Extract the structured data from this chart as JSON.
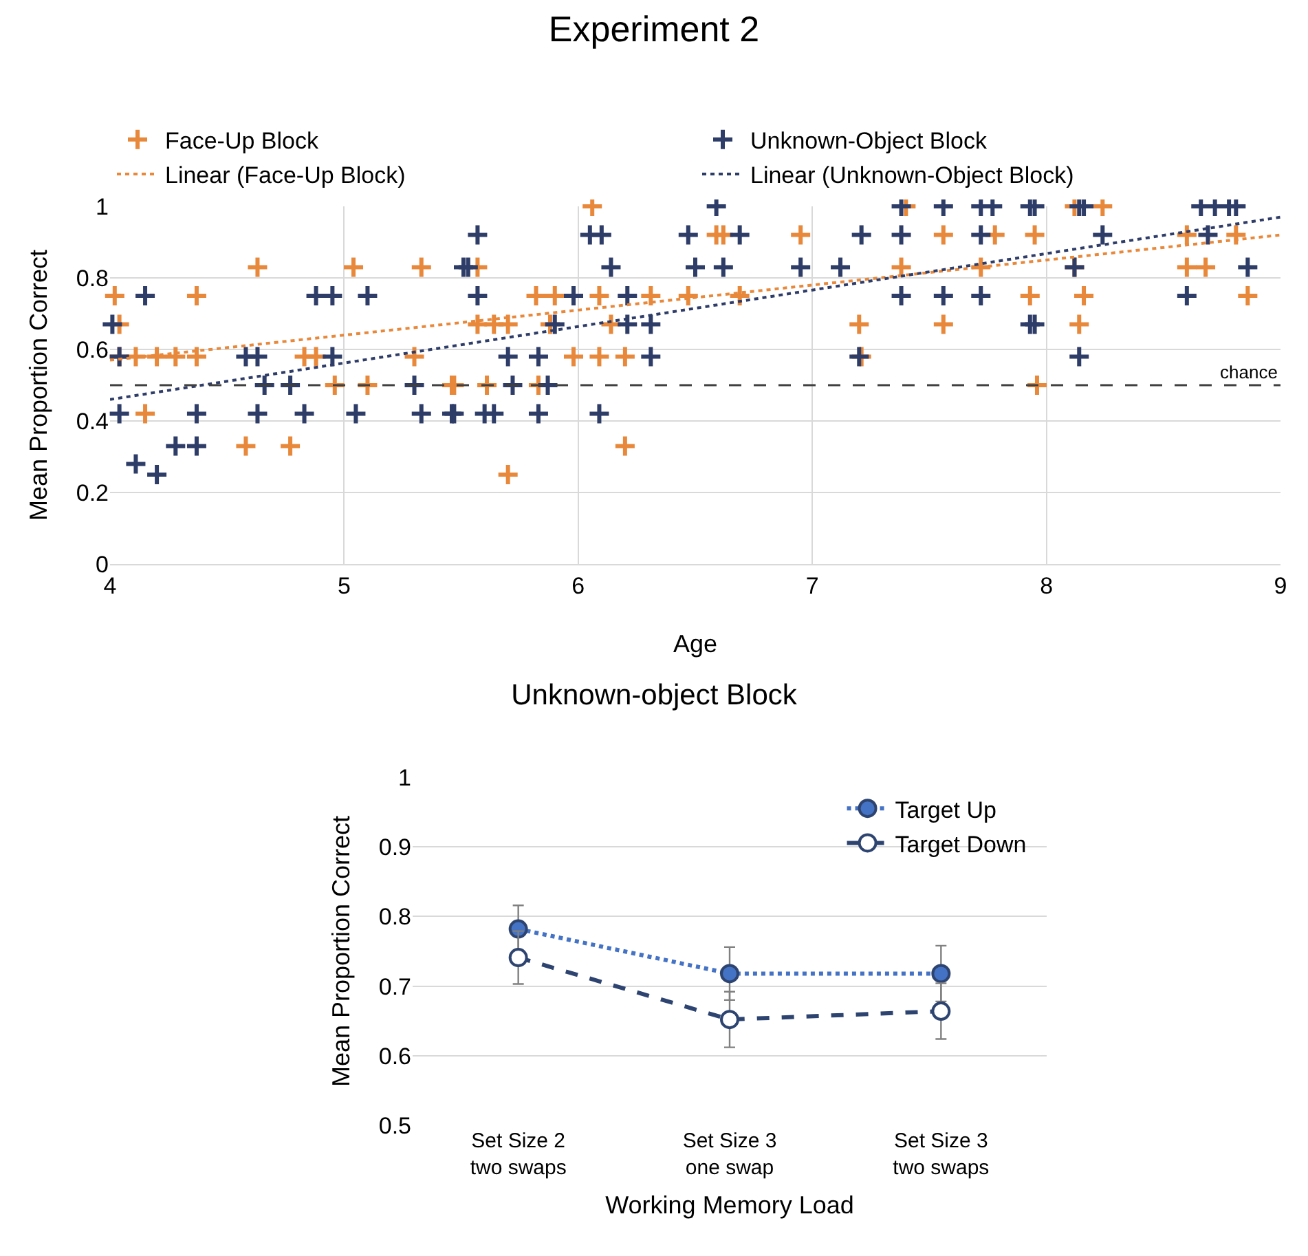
{
  "chart_data": [
    {
      "type": "scatter",
      "title": "Experiment 2",
      "xlabel": "Age",
      "ylabel": "Mean Proportion Correct",
      "xlim": [
        4,
        9
      ],
      "xticks": [
        4,
        5,
        6,
        7,
        8,
        9
      ],
      "ylim": [
        0,
        1
      ],
      "yticks": [
        0,
        0.2,
        0.4,
        0.6,
        0.8,
        1
      ],
      "grid": true,
      "legend": "top",
      "ref_lines": [
        {
          "axis": "y",
          "value": 0.5,
          "label": "chance",
          "color": "#404040",
          "line_style": "dashed"
        }
      ],
      "series": [
        {
          "name": "Face-Up Block",
          "color": "#e8883a",
          "marker": "cross",
          "x": [
            4.02,
            4.04,
            4.04,
            4.11,
            4.2,
            4.28,
            4.37,
            4.37,
            4.15,
            4.63,
            4.58,
            4.77,
            4.83,
            4.88,
            4.96,
            5.04,
            5.1,
            5.33,
            5.3,
            5.46,
            5.57,
            5.57,
            5.64,
            5.7,
            5.47,
            5.61,
            5.7,
            5.82,
            5.9,
            5.83,
            5.88,
            5.98,
            6.06,
            6.09,
            6.14,
            6.09,
            6.2,
            6.2,
            6.31,
            6.47,
            6.59,
            6.62,
            6.69,
            6.95,
            7.4,
            7.38,
            7.2,
            7.21,
            7.56,
            7.56,
            7.78,
            7.72,
            7.95,
            7.93,
            7.96,
            8.12,
            8.24,
            8.12,
            8.16,
            8.14,
            8.6,
            8.6,
            8.68,
            8.81,
            8.86
          ],
          "values": [
            0.75,
            0.67,
            0.58,
            0.58,
            0.58,
            0.58,
            0.58,
            0.75,
            0.42,
            0.83,
            0.33,
            0.33,
            0.58,
            0.58,
            0.5,
            0.83,
            0.5,
            0.83,
            0.58,
            0.5,
            0.83,
            0.67,
            0.67,
            0.67,
            0.5,
            0.5,
            0.25,
            0.75,
            0.75,
            0.5,
            0.67,
            0.58,
            1.0,
            0.75,
            0.67,
            0.58,
            0.58,
            0.33,
            0.75,
            0.75,
            0.92,
            0.92,
            0.75,
            0.92,
            1.0,
            0.83,
            0.67,
            0.58,
            0.92,
            0.67,
            0.92,
            0.83,
            0.92,
            0.75,
            0.5,
            1.0,
            1.0,
            0.83,
            0.75,
            0.67,
            0.92,
            0.83,
            0.83,
            0.92,
            0.75
          ]
        },
        {
          "name": "Unknown-Object Block",
          "color": "#2e3c68",
          "marker": "cross",
          "x": [
            4.01,
            4.04,
            4.04,
            4.15,
            4.11,
            4.2,
            4.28,
            4.37,
            4.37,
            4.58,
            4.63,
            4.63,
            4.66,
            4.77,
            4.83,
            4.88,
            4.95,
            4.95,
            5.05,
            5.1,
            5.3,
            5.33,
            5.46,
            5.51,
            5.57,
            5.53,
            5.57,
            5.7,
            5.72,
            5.47,
            5.6,
            5.64,
            5.83,
            5.83,
            5.87,
            5.9,
            5.98,
            6.05,
            6.1,
            6.14,
            6.09,
            6.21,
            6.21,
            6.31,
            6.31,
            6.47,
            6.5,
            6.59,
            6.69,
            6.62,
            6.95,
            7.12,
            7.21,
            7.2,
            7.38,
            7.38,
            7.38,
            7.56,
            7.56,
            7.72,
            7.77,
            7.72,
            7.72,
            7.93,
            7.95,
            7.93,
            7.95,
            8.14,
            8.16,
            8.24,
            8.12,
            8.14,
            8.66,
            8.72,
            8.78,
            8.81,
            8.69,
            8.86,
            8.6
          ],
          "values": [
            0.67,
            0.58,
            0.42,
            0.75,
            0.28,
            0.25,
            0.33,
            0.33,
            0.42,
            0.58,
            0.58,
            0.42,
            0.5,
            0.5,
            0.42,
            0.75,
            0.75,
            0.58,
            0.42,
            0.75,
            0.5,
            0.42,
            0.42,
            0.83,
            0.92,
            0.83,
            0.75,
            0.58,
            0.5,
            0.42,
            0.42,
            0.42,
            0.58,
            0.42,
            0.5,
            0.67,
            0.75,
            0.92,
            0.92,
            0.83,
            0.42,
            0.75,
            0.67,
            0.67,
            0.58,
            0.92,
            0.83,
            1.0,
            0.92,
            0.83,
            0.83,
            0.83,
            0.92,
            0.58,
            1.0,
            0.92,
            0.75,
            1.0,
            0.75,
            1.0,
            1.0,
            0.92,
            0.75,
            1.0,
            1.0,
            0.67,
            0.67,
            1.0,
            1.0,
            0.92,
            0.83,
            0.58,
            1.0,
            1.0,
            1.0,
            1.0,
            0.92,
            0.83,
            0.75
          ]
        },
        {
          "name": "Linear (Face-Up Block)",
          "type": "line",
          "color": "#e8883a",
          "marker": "none",
          "line_style": "dotted",
          "x": [
            4,
            9
          ],
          "values": [
            0.57,
            0.92
          ]
        },
        {
          "name": "Linear (Unknown-Object Block)",
          "type": "line",
          "color": "#2e3c68",
          "marker": "none",
          "line_style": "dotted",
          "x": [
            4,
            9
          ],
          "values": [
            0.46,
            0.97
          ]
        }
      ]
    },
    {
      "type": "line",
      "title": "Unknown-object Block",
      "xlabel": "Working Memory Load",
      "ylabel": "Mean Proportion Correct",
      "categories": [
        "Set Size 2\ntwo swaps",
        "Set Size 3\none swap",
        "Set Size 3\ntwo swaps"
      ],
      "ylim": [
        0.5,
        1
      ],
      "yticks": [
        0.5,
        0.6,
        0.7,
        0.8,
        0.9,
        1
      ],
      "grid": "y",
      "legend": "top right",
      "marker": "circle",
      "series": [
        {
          "name": "Target Up",
          "color": "#4472c4",
          "line_style": "dotted",
          "values": [
            0.782,
            0.718,
            0.718
          ],
          "errors": [
            0.034,
            0.038,
            0.04
          ]
        },
        {
          "name": "Target Down",
          "color": "#2e4470",
          "line_style": "dashed",
          "values": [
            0.741,
            0.652,
            0.664
          ],
          "errors": [
            0.038,
            0.04,
            0.04
          ]
        }
      ]
    }
  ]
}
